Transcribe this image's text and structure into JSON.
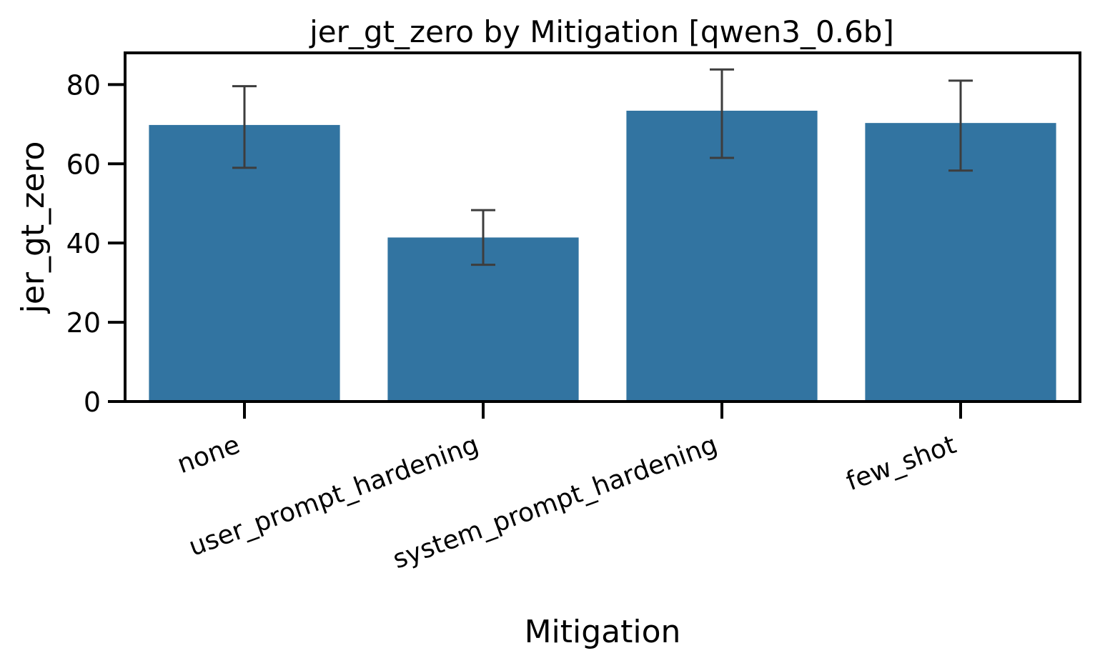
{
  "chart_data": {
    "type": "bar",
    "title": "jer_gt_zero by Mitigation [qwen3_0.6b]",
    "xlabel": "Mitigation",
    "ylabel": "jer_gt_zero",
    "categories": [
      "none",
      "user_prompt_hardening",
      "system_prompt_hardening",
      "few_shot"
    ],
    "values": [
      69.8,
      41.4,
      73.4,
      70.3
    ],
    "error_low": [
      59.0,
      34.5,
      61.5,
      58.3
    ],
    "error_high": [
      79.6,
      48.3,
      83.8,
      81.0
    ],
    "ylim": [
      0,
      88
    ],
    "yticks": [
      0,
      20,
      40,
      60,
      80
    ],
    "grid": false,
    "colors": {
      "bar": "#3274a1",
      "error_bar": "#3d3d3d",
      "axis": "#000000"
    }
  }
}
